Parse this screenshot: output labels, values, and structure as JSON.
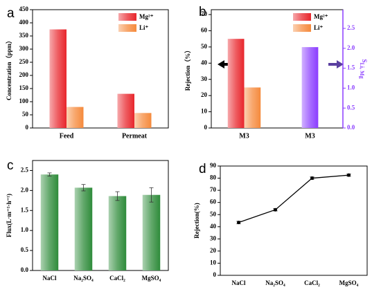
{
  "chart_data": [
    {
      "type": "bar",
      "panel_label": "a",
      "ylabel": "Concentration（ppm）",
      "categories": [
        "Feed",
        "Permeat"
      ],
      "series": [
        {
          "name": "Mg²⁺",
          "color": "#e8262c",
          "values": [
            375,
            130
          ]
        },
        {
          "name": "Li⁺",
          "color": "#f58a3c",
          "values": [
            80,
            57
          ]
        }
      ],
      "ylim": [
        0,
        450
      ],
      "yticks": [
        0,
        50,
        100,
        150,
        200,
        250,
        300,
        350,
        400,
        450
      ],
      "legend": "upper right"
    },
    {
      "type": "bar",
      "panel_label": "b",
      "ylabel": "Rejection（%）",
      "y2label": "S",
      "y2label_sub": "Li, Mg",
      "categories": [
        "M3",
        "M3"
      ],
      "series": [
        {
          "name": "Mg²⁺",
          "color": "#e8262c",
          "values": [
            55,
            null
          ]
        },
        {
          "name": "Li⁺",
          "color": "#f58a3c",
          "values": [
            25,
            null
          ]
        },
        {
          "color": "#8b3dff",
          "axis": "y2",
          "values": [
            null,
            2.03
          ]
        }
      ],
      "ylim": [
        0,
        73
      ],
      "yticks": [
        0,
        10,
        20,
        30,
        40,
        50,
        60,
        70
      ],
      "y2lim": [
        0,
        2.97
      ],
      "y2ticks": [
        {
          "value": 0,
          "label": "0.0"
        },
        0.5,
        {
          "value": 1,
          "label": "1.0"
        },
        1.5,
        {
          "value": 2,
          "label": "2.0"
        },
        2.5
      ],
      "legend": "upper right"
    },
    {
      "type": "bar",
      "panel_label": "c",
      "ylabel": "Flux(L·m⁻²·h⁻¹)",
      "categories": [
        "NaCl",
        "Na₂SO₄",
        "CaCl₂",
        "MgSO₄"
      ],
      "series": [
        {
          "color": "#2e8b3a",
          "values": [
            2.4,
            2.07,
            1.86,
            1.89
          ],
          "errors": [
            0.04,
            0.08,
            0.11,
            0.18
          ]
        }
      ],
      "ylim": [
        0,
        2.75
      ],
      "yticks": [
        {
          "value": 0,
          "label": "0.0"
        },
        0.5,
        {
          "value": 1,
          "label": "1.0"
        },
        1.5,
        {
          "value": 2,
          "label": "2.0"
        },
        2.5
      ]
    },
    {
      "type": "line",
      "panel_label": "d",
      "ylabel": "Rejection(%)",
      "categories": [
        "NaCl",
        "Na₂SO₄",
        "CaCl₂",
        "MgSO₄"
      ],
      "series": [
        {
          "color": "#000000",
          "values": [
            43.5,
            54,
            80,
            82.5
          ],
          "errors": [
            1,
            1,
            1,
            1
          ]
        }
      ],
      "ylim": [
        0,
        90
      ],
      "yticks": [
        0,
        10,
        20,
        30,
        40,
        50,
        60,
        70,
        80,
        90
      ]
    }
  ]
}
